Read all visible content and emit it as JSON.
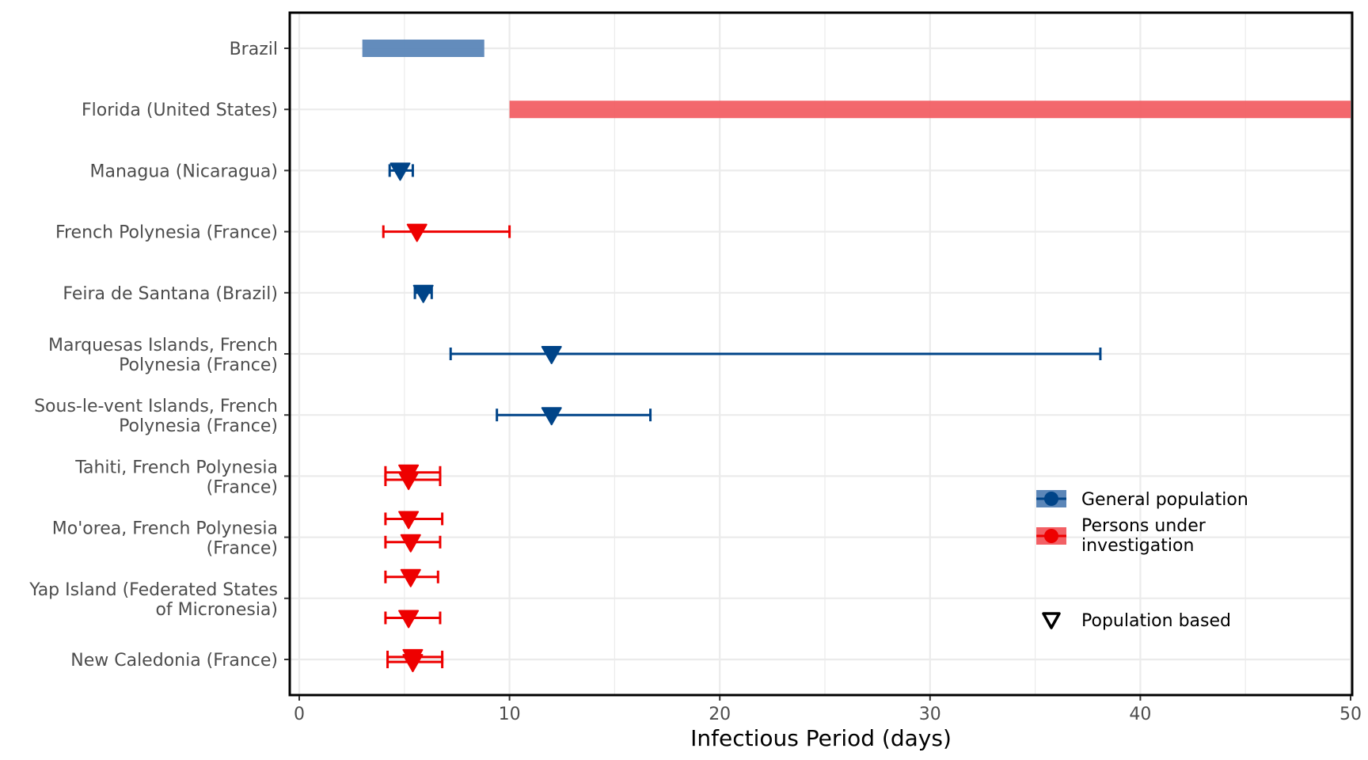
{
  "chart_data": {
    "type": "forest",
    "xlabel": "Infectious Period (days)",
    "xlim": [
      0,
      50
    ],
    "x_ticks": [
      0,
      10,
      20,
      30,
      40,
      50
    ],
    "grid": true,
    "categories": [
      "Brazil",
      "Florida (United States)",
      "Managua (Nicaragua)",
      "French Polynesia (France)",
      "Feira de Santana (Brazil)",
      "Marquesas Islands, French Polynesia (France)",
      "Sous-le-vent Islands, French Polynesia (France)",
      "Tahiti, French Polynesia (France)",
      "Mo'orea, French Polynesia (France)",
      "Yap Island (Federated States of Micronesia)",
      "New Caledonia (France)"
    ],
    "category_lines": [
      [
        "Brazil"
      ],
      [
        "Florida (United States)"
      ],
      [
        "Managua (Nicaragua)"
      ],
      [
        "French Polynesia (France)"
      ],
      [
        "Feira de Santana (Brazil)"
      ],
      [
        "Marquesas Islands, French",
        "Polynesia (France)"
      ],
      [
        "Sous-le-vent Islands, French",
        "Polynesia (France)"
      ],
      [
        "Tahiti, French Polynesia",
        "(France)"
      ],
      [
        "Mo'orea, French Polynesia",
        "(France)"
      ],
      [
        "Yap Island (Federated States",
        "of Micronesia)"
      ],
      [
        "New Caledonia (France)"
      ]
    ],
    "ranges": [
      {
        "category_index": 0,
        "offset": 0,
        "low": 3.0,
        "high": 8.8,
        "group": "General population"
      },
      {
        "category_index": 1,
        "offset": 0,
        "low": 10.0,
        "high": 50.0,
        "group": "Persons under investigation"
      }
    ],
    "points": [
      {
        "category_index": 2,
        "offset": 0,
        "estimate": 4.8,
        "low": 4.3,
        "high": 5.4,
        "group": "General population"
      },
      {
        "category_index": 3,
        "offset": 0,
        "estimate": 5.6,
        "low": 4.0,
        "high": 10.0,
        "group": "Persons under investigation"
      },
      {
        "category_index": 4,
        "offset": 0,
        "estimate": 5.9,
        "low": 5.5,
        "high": 6.3,
        "group": "General population"
      },
      {
        "category_index": 5,
        "offset": 0,
        "estimate": 12.0,
        "low": 7.2,
        "high": 38.1,
        "group": "General population"
      },
      {
        "category_index": 6,
        "offset": 0,
        "estimate": 12.0,
        "low": 9.4,
        "high": 16.7,
        "group": "General population"
      },
      {
        "category_index": 7,
        "offset": -0.06,
        "estimate": 5.2,
        "low": 4.1,
        "high": 6.7,
        "group": "Persons under investigation"
      },
      {
        "category_index": 7,
        "offset": 0.06,
        "estimate": 5.2,
        "low": 4.1,
        "high": 6.7,
        "group": "Persons under investigation"
      },
      {
        "category_index": 8,
        "offset": -0.3,
        "estimate": 5.2,
        "low": 4.1,
        "high": 6.8,
        "group": "Persons under investigation"
      },
      {
        "category_index": 8,
        "offset": 0.08,
        "estimate": 5.3,
        "low": 4.1,
        "high": 6.7,
        "group": "Persons under investigation"
      },
      {
        "category_index": 9,
        "offset": -0.35,
        "estimate": 5.3,
        "low": 4.1,
        "high": 6.6,
        "group": "Persons under investigation"
      },
      {
        "category_index": 9,
        "offset": 0.32,
        "estimate": 5.2,
        "low": 4.1,
        "high": 6.7,
        "group": "Persons under investigation"
      },
      {
        "category_index": 10,
        "offset": -0.04,
        "estimate": 5.4,
        "low": 4.2,
        "high": 6.8,
        "group": "Persons under investigation"
      },
      {
        "category_index": 10,
        "offset": 0.04,
        "estimate": 5.4,
        "low": 4.2,
        "high": 6.8,
        "group": "Persons under investigation"
      }
    ],
    "legend": {
      "placement": "right-center",
      "groups": [
        {
          "label": "General population",
          "color": "#004488",
          "fill": "#5b86b8"
        },
        {
          "label_lines": [
            "Persons under",
            "investigation"
          ],
          "label": "Persons under investigation",
          "color": "#ee0000",
          "fill": "#f26065"
        }
      ],
      "shape_label": "Population based"
    }
  },
  "colors": {
    "general_line": "#004488",
    "general_range": "#5b86b8",
    "puf_line": "#ee0000",
    "puf_range": "#f26065",
    "grid": "#ebebeb",
    "panel_border": "#000000"
  }
}
